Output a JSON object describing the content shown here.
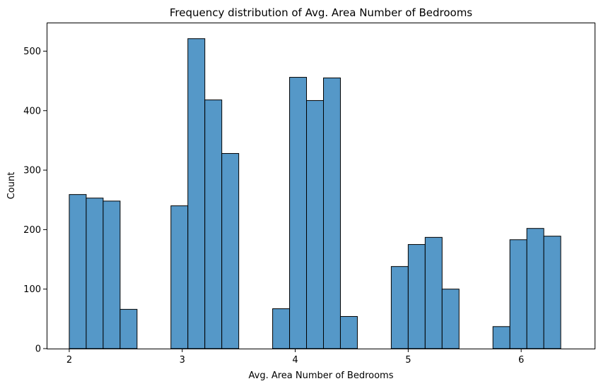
{
  "chart_data": {
    "type": "bar",
    "title": "Frequency distribution of Avg. Area Number of Bedrooms",
    "xlabel": "Avg. Area Number of Bedrooms",
    "ylabel": "Count",
    "xlim": [
      1.8,
      6.65
    ],
    "ylim": [
      0,
      548
    ],
    "xticks": [
      2,
      3,
      4,
      5,
      6
    ],
    "yticks": [
      0,
      100,
      200,
      300,
      400,
      500
    ],
    "bin_edges": [
      2.0,
      2.15,
      2.3,
      2.45,
      2.6,
      2.75,
      2.9,
      3.05,
      3.2,
      3.35,
      3.5,
      3.65,
      3.8,
      3.95,
      4.1,
      4.25,
      4.4,
      4.55,
      4.7,
      4.85,
      5.0,
      5.15,
      5.3,
      5.45,
      5.6,
      5.75,
      5.9,
      6.05,
      6.2,
      6.35,
      6.5
    ],
    "counts": [
      259,
      253,
      248,
      66,
      0,
      0,
      240,
      521,
      418,
      328,
      0,
      0,
      67,
      456,
      417,
      455,
      54,
      0,
      0,
      138,
      175,
      187,
      100,
      0,
      0,
      37,
      183,
      202,
      189,
      0
    ],
    "grid": false,
    "bar_color": "#5598c8",
    "edge_color": "#000000"
  }
}
